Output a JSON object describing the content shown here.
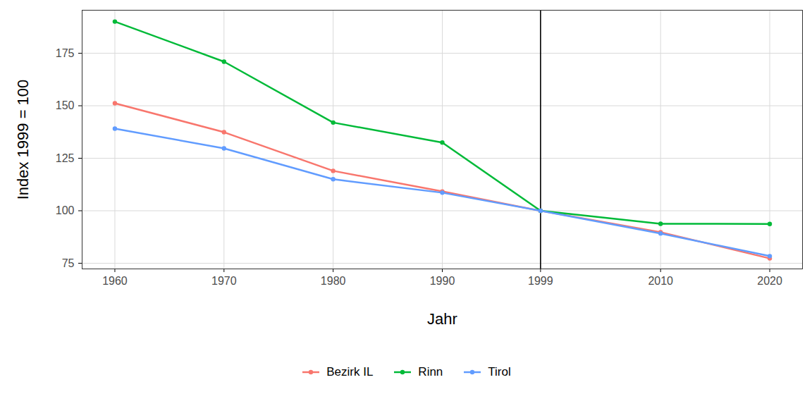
{
  "chart_data": {
    "type": "line",
    "x_label": "Jahr",
    "y_label": "Index 1999 = 100",
    "x": [
      1960,
      1970,
      1980,
      1990,
      1999,
      2010,
      2020
    ],
    "series": [
      {
        "name": "Bezirk IL",
        "color": "#F8766D",
        "values": [
          151.2,
          137.4,
          119,
          109.2,
          100,
          89.8,
          77.3
        ]
      },
      {
        "name": "Rinn",
        "color": "#00BA38",
        "values": [
          190.1,
          171,
          142,
          132.5,
          100,
          93.8,
          93.7
        ]
      },
      {
        "name": "Tirol",
        "color": "#619CFF",
        "values": [
          139.1,
          129.7,
          115,
          108.6,
          100,
          89.2,
          78.4
        ]
      }
    ],
    "xlim": [
      1957,
      2023
    ],
    "ylim": [
      72.3,
      195.5
    ],
    "xticks": [
      1960,
      1970,
      1980,
      1990,
      1999,
      2010,
      2020
    ],
    "yticks": [
      75,
      100,
      125,
      150,
      175
    ],
    "grid": true,
    "legend": "bottom",
    "marker": "circle",
    "vline": 1999
  }
}
